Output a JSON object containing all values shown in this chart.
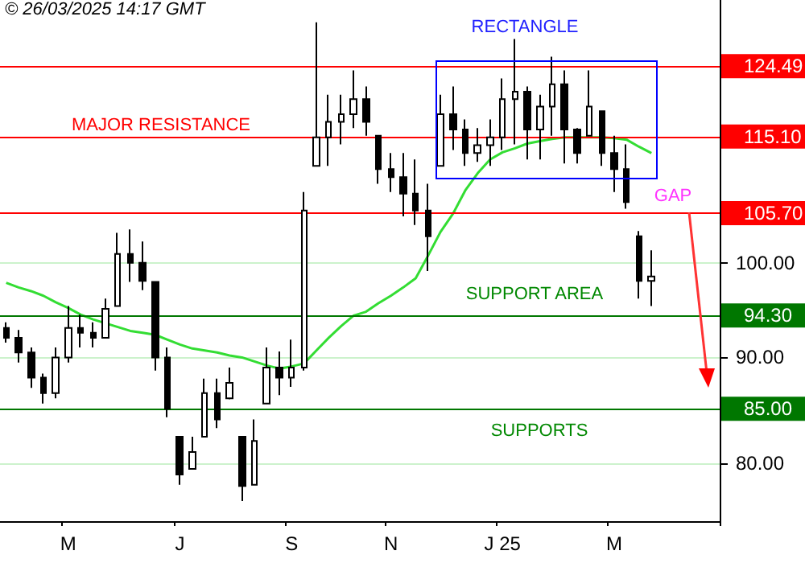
{
  "chart_data": {
    "type": "candlestick",
    "title": "© 26/03/2025  14:17 GMT",
    "categories": [
      null,
      null,
      null,
      null,
      null,
      "M",
      null,
      null,
      null,
      null,
      null,
      null,
      null,
      null,
      "J",
      null,
      null,
      null,
      null,
      null,
      null,
      null,
      null,
      "S",
      null,
      null,
      null,
      null,
      null,
      null,
      null,
      "N",
      null,
      null,
      null,
      null,
      null,
      null,
      null,
      null,
      "J 25",
      null,
      null,
      null,
      null,
      null,
      null,
      null,
      null,
      "M",
      null,
      null,
      null,
      null,
      null,
      null,
      null,
      null
    ],
    "series": [
      {
        "color": "#000000",
        "ohlc": [
          [
            93.0,
            93.6,
            91.5,
            92.0
          ],
          [
            92.0,
            92.8,
            89.5,
            90.5
          ],
          [
            90.5,
            91.0,
            87.0,
            88.0
          ],
          [
            88.0,
            88.4,
            85.5,
            86.5
          ],
          [
            86.5,
            91.0,
            86.0,
            90.0
          ],
          [
            90.0,
            95.3,
            89.5,
            93.0
          ],
          [
            93.0,
            94.4,
            91.0,
            92.5
          ],
          [
            92.5,
            93.6,
            91.0,
            92.0
          ],
          [
            92.0,
            96.1,
            92.0,
            95.0
          ],
          [
            95.3,
            103.4,
            95.3,
            101.0
          ],
          [
            101.0,
            103.8,
            97.9,
            100.0
          ],
          [
            100.0,
            102.4,
            97.0,
            98.0
          ],
          [
            97.9,
            97.9,
            88.7,
            90.0
          ],
          [
            90.0,
            91.0,
            84.2,
            85.0
          ],
          [
            82.4,
            82.4,
            78.1,
            79.0
          ],
          [
            79.5,
            82.4,
            79.5,
            81.0
          ],
          [
            82.4,
            87.9,
            82.4,
            86.5
          ],
          [
            86.5,
            87.9,
            83.2,
            84.0
          ],
          [
            86.0,
            89.0,
            85.9,
            87.5
          ],
          [
            82.4,
            82.4,
            76.7,
            78.0
          ],
          [
            78.1,
            84.0,
            78.1,
            82.0
          ],
          [
            85.5,
            91.0,
            85.5,
            89.0
          ],
          [
            89.0,
            90.6,
            86.3,
            88.0
          ],
          [
            88.0,
            91.8,
            87.1,
            89.0
          ],
          [
            89.0,
            108.2,
            88.7,
            106.0
          ],
          [
            111.4,
            130.7,
            111.4,
            115.0
          ],
          [
            115.0,
            120.6,
            111.4,
            117.0
          ],
          [
            117.0,
            120.6,
            114.1,
            118.0
          ],
          [
            118.0,
            123.9,
            116.2,
            120.0
          ],
          [
            120.0,
            121.7,
            115.2,
            117.0
          ],
          [
            115.2,
            115.2,
            109.2,
            111.0
          ],
          [
            111.0,
            113.0,
            108.2,
            110.0
          ],
          [
            110.0,
            113.0,
            105.3,
            108.0
          ],
          [
            108.0,
            112.2,
            104.3,
            106.0
          ],
          [
            106.0,
            109.2,
            99.1,
            103.0
          ],
          [
            111.4,
            120.6,
            111.4,
            118.0
          ],
          [
            118.0,
            121.7,
            113.4,
            116.0
          ],
          [
            116.0,
            117.3,
            111.4,
            113.0
          ],
          [
            113.0,
            116.2,
            111.9,
            114.0
          ],
          [
            114.0,
            117.3,
            111.4,
            115.0
          ],
          [
            115.0,
            122.8,
            113.4,
            120.0
          ],
          [
            120.0,
            128.3,
            114.1,
            121.0
          ],
          [
            121.0,
            121.7,
            112.2,
            116.0
          ],
          [
            116.0,
            120.6,
            112.2,
            119.0
          ],
          [
            119.0,
            125.8,
            115.2,
            122.0
          ],
          [
            122.0,
            123.9,
            111.7,
            116.0
          ],
          [
            116.0,
            116.2,
            111.7,
            113.0
          ],
          [
            115.2,
            123.9,
            115.2,
            119.0
          ],
          [
            118.4,
            118.4,
            111.4,
            113.0
          ],
          [
            113.0,
            115.2,
            108.2,
            111.0
          ],
          [
            111.0,
            114.1,
            106.2,
            107.0
          ],
          [
            103.0,
            103.6,
            96.1,
            98.0
          ],
          [
            98.0,
            101.4,
            95.3,
            98.5
          ],
          null,
          null,
          null,
          null,
          null
        ]
      },
      {
        "type": "line",
        "color": "#33dd33",
        "values": [
          97.8,
          97.3,
          96.9,
          96.4,
          95.7,
          95.1,
          94.4,
          93.9,
          93.5,
          93.1,
          92.7,
          92.5,
          92.3,
          91.8,
          91.3,
          90.9,
          90.7,
          90.5,
          90.2,
          90.0,
          89.6,
          89.2,
          88.9,
          89.1,
          89.4,
          90.7,
          92.0,
          93.2,
          94.3,
          94.7,
          95.6,
          96.4,
          97.3,
          98.3,
          100.8,
          103.5,
          105.6,
          108.4,
          110.5,
          112.2,
          113.1,
          113.6,
          114.2,
          114.5,
          114.8,
          115.0,
          115.0,
          115.0,
          115.0,
          114.9,
          114.7,
          113.8,
          113.0,
          null,
          null,
          null,
          null,
          null
        ]
      }
    ],
    "log": true,
    "ylim": [
      75,
      134
    ],
    "yticks": [
      {
        "value": 80,
        "label": "80.00"
      },
      {
        "value": 90,
        "label": "90.00"
      },
      {
        "value": 100,
        "label": "100.00"
      }
    ],
    "grid": "y",
    "ref_lines": [
      {
        "axis": "y",
        "value": 124.49,
        "label": "124.49",
        "color": "#ff0000"
      },
      {
        "axis": "y",
        "value": 115.1,
        "label": "115.10",
        "color": "#ff0000"
      },
      {
        "axis": "y",
        "value": 105.7,
        "label": "105.70",
        "color": "#ff0000"
      },
      {
        "axis": "y",
        "value": 94.3,
        "label": "94.30",
        "color": "#007700"
      },
      {
        "axis": "y",
        "value": 85.0,
        "label": "85.00",
        "color": "#007700"
      }
    ],
    "annotations": [
      "RECTANGLE",
      "MAJOR RESISTANCE",
      "GAP",
      "SUPPORT AREA",
      "SUPPORTS"
    ]
  }
}
